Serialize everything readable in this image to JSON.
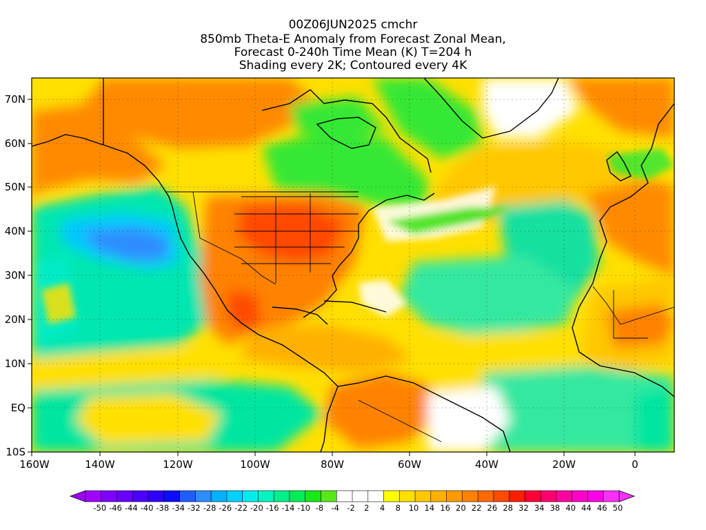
{
  "title": {
    "line1": "00Z06JUN2025 cmchr",
    "line2": "850mb Theta-E Anomaly from Forecast Zonal Mean,",
    "line3": "Forecast 0-240h Time Mean (K) T=204 h",
    "line4": "Shading every 2K; Contoured every 4K"
  },
  "map": {
    "lat_labels": [
      "70N",
      "60N",
      "50N",
      "40N",
      "30N",
      "20N",
      "10N",
      "EQ",
      "10S"
    ],
    "lon_labels": [
      "160W",
      "140W",
      "120W",
      "100W",
      "80W",
      "60W",
      "40W",
      "20W",
      "0"
    ]
  },
  "colorbar": {
    "colors": [
      "#a000ff",
      "#7f00ff",
      "#6a00ff",
      "#4b00ff",
      "#2e00ff",
      "#0c0cff",
      "#1f5fff",
      "#2f8cff",
      "#00b2ff",
      "#00d2ff",
      "#00ecec",
      "#00f5c0",
      "#00f08a",
      "#00ee55",
      "#18e818",
      "#58e818",
      "#ffffff",
      "#ffffff",
      "#ffffff",
      "#ffff00",
      "#ffe000",
      "#ffc800",
      "#ffb000",
      "#ff9a00",
      "#ff8200",
      "#ff6a00",
      "#ff4a00",
      "#ff1e00",
      "#ff0038",
      "#ff0070",
      "#ff00a0",
      "#ff00c8",
      "#ff00e6",
      "#ff30ff"
    ],
    "labels": [
      "-50",
      "-46",
      "-44",
      "-40",
      "-38",
      "-34",
      "-32",
      "-28",
      "-26",
      "-22",
      "-20",
      "-16",
      "-14",
      "-10",
      "-8",
      "-4",
      "-2",
      "2",
      "4",
      "8",
      "10",
      "14",
      "16",
      "20",
      "22",
      "26",
      "28",
      "32",
      "34",
      "38",
      "40",
      "44",
      "46",
      "50"
    ]
  }
}
